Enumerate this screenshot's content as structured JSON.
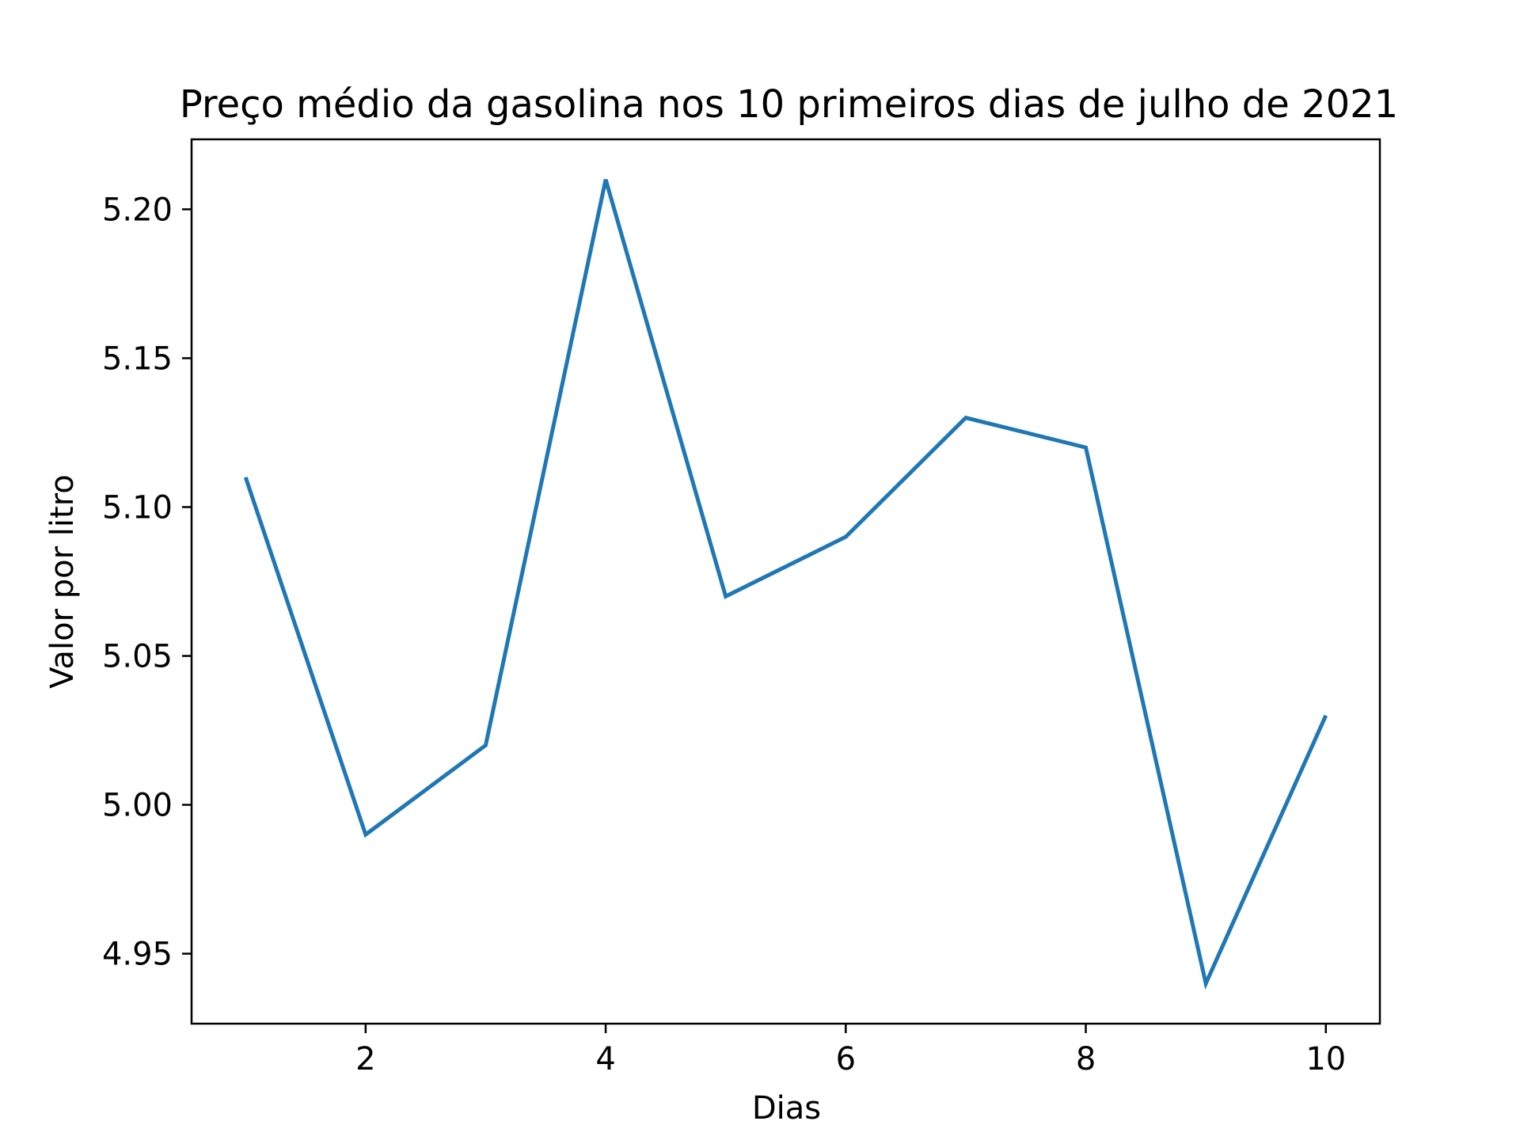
{
  "chart_data": {
    "type": "line",
    "title": "Preço médio da gasolina nos 10 primeiros dias de julho de 2021",
    "xlabel": "Dias",
    "ylabel": "Valor por litro",
    "xlim": [
      0.55,
      10.45
    ],
    "ylim": [
      4.9265,
      5.2235
    ],
    "xticks": [
      2,
      4,
      6,
      8,
      10
    ],
    "xtick_labels": [
      "2",
      "4",
      "6",
      "8",
      "10"
    ],
    "yticks": [
      4.95,
      5.0,
      5.05,
      5.1,
      5.15,
      5.2
    ],
    "ytick_labels": [
      "4.95",
      "5.00",
      "5.05",
      "5.10",
      "5.15",
      "5.20"
    ],
    "grid": false,
    "legend": "none",
    "series": [
      {
        "color": "#1f77b4",
        "x": [
          1,
          2,
          3,
          4,
          5,
          6,
          7,
          8,
          9,
          10
        ],
        "y": [
          5.11,
          4.99,
          5.02,
          5.21,
          5.07,
          5.09,
          5.13,
          5.12,
          4.94,
          5.03
        ]
      }
    ]
  }
}
